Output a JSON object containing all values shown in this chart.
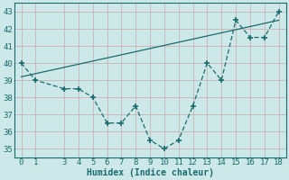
{
  "xlabel": "Humidex (Indice chaleur)",
  "ylabel": "",
  "bg_color": "#cce8e8",
  "grid_color": "#b8d8d8",
  "line_color": "#1a6b6b",
  "xlim": [
    -0.5,
    18.5
  ],
  "ylim": [
    34.5,
    43.5
  ],
  "xticks": [
    0,
    1,
    3,
    4,
    5,
    6,
    7,
    8,
    9,
    10,
    11,
    12,
    13,
    14,
    15,
    16,
    17,
    18
  ],
  "yticks": [
    35,
    36,
    37,
    38,
    39,
    40,
    41,
    42,
    43
  ],
  "data_x": [
    0,
    1,
    3,
    4,
    5,
    6,
    7,
    8,
    9,
    10,
    11,
    12,
    13,
    14,
    15,
    16,
    17,
    18
  ],
  "data_y": [
    40,
    39,
    38.5,
    38.5,
    38,
    36.5,
    36.5,
    37.5,
    35.5,
    35,
    35.5,
    37.5,
    40,
    39,
    42.5,
    41.5,
    41.5,
    43
  ],
  "trend_x": [
    0,
    18
  ],
  "trend_y": [
    39.2,
    42.5
  ]
}
